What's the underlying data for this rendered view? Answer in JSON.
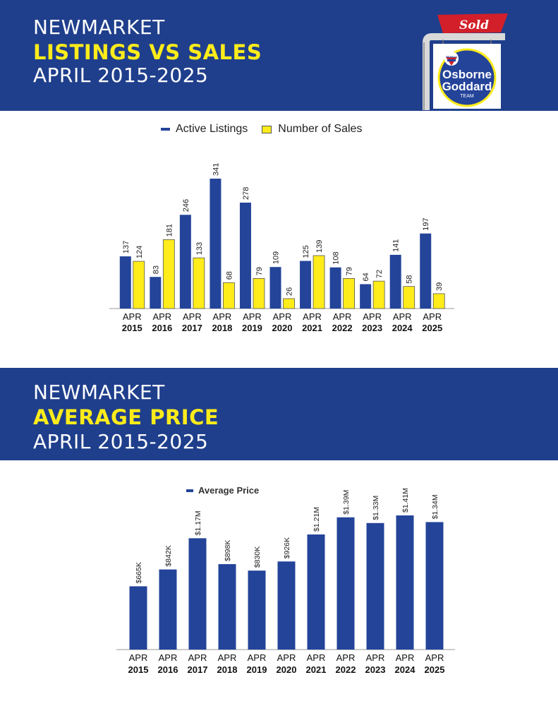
{
  "section1": {
    "title_line1": "NEWMARKET",
    "title_line2": "LISTINGS VS SALES",
    "title_line3": "APRIL 2015-2025"
  },
  "section2": {
    "title_line1": "NEWMARKET",
    "title_line2": "AVERAGE PRICE",
    "title_line3": "APRIL 2015-2025"
  },
  "logo": {
    "sign_text": "Sold",
    "brand_line1": "Osborne",
    "brand_line2": "Goddard",
    "brand_line3": "TEAM",
    "badge_text": "RE/MAX"
  },
  "colors": {
    "banner": "#1f3f8c",
    "highlight": "#ffec1a",
    "active_listings": "#24449a",
    "sales": "#ffec1a",
    "sold_red": "#d21f2a"
  },
  "chart_data": [
    {
      "type": "bar",
      "categories": [
        "APR 2015",
        "APR 2016",
        "APR 2017",
        "APR 2018",
        "APR 2019",
        "APR 2020",
        "APR 2021",
        "APR 2022",
        "APR 2023",
        "APR 2024",
        "APR 2025"
      ],
      "category_lines": [
        [
          "APR",
          "2015"
        ],
        [
          "APR",
          "2016"
        ],
        [
          "APR",
          "2017"
        ],
        [
          "APR",
          "2018"
        ],
        [
          "APR",
          "2019"
        ],
        [
          "APR",
          "2020"
        ],
        [
          "APR",
          "2021"
        ],
        [
          "APR",
          "2022"
        ],
        [
          "APR",
          "2023"
        ],
        [
          "APR",
          "2024"
        ],
        [
          "APR",
          "2025"
        ]
      ],
      "series": [
        {
          "name": "Active Listings",
          "color": "#24449a",
          "values": [
            137,
            83,
            246,
            341,
            278,
            109,
            125,
            108,
            64,
            141,
            197
          ],
          "labels": [
            "137",
            "83",
            "246",
            "341",
            "278",
            "109",
            "125",
            "108",
            "64",
            "141",
            "197"
          ]
        },
        {
          "name": "Number of Sales",
          "color": "#ffec1a",
          "values": [
            124,
            181,
            133,
            68,
            79,
            26,
            139,
            79,
            72,
            58,
            39
          ],
          "labels": [
            "124",
            "181",
            "133",
            "68",
            "79",
            "26",
            "139",
            "79",
            "72",
            "58",
            "39"
          ]
        }
      ],
      "ylim": [
        0,
        341
      ],
      "legend_position": "top-center",
      "grid": false
    },
    {
      "type": "bar",
      "categories": [
        "APR 2015",
        "APR 2016",
        "APR 2017",
        "APR 2018",
        "APR 2019",
        "APR 2020",
        "APR 2021",
        "APR 2022",
        "APR 2023",
        "APR 2024",
        "APR 2025"
      ],
      "category_lines": [
        [
          "APR",
          "2015"
        ],
        [
          "APR",
          "2016"
        ],
        [
          "APR",
          "2017"
        ],
        [
          "APR",
          "2018"
        ],
        [
          "APR",
          "2019"
        ],
        [
          "APR",
          "2020"
        ],
        [
          "APR",
          "2021"
        ],
        [
          "APR",
          "2022"
        ],
        [
          "APR",
          "2023"
        ],
        [
          "APR",
          "2024"
        ],
        [
          "APR",
          "2025"
        ]
      ],
      "series": [
        {
          "name": "Average Price",
          "color": "#24449a",
          "values": [
            665000,
            842000,
            1170000,
            898000,
            830000,
            926000,
            1210000,
            1390000,
            1330000,
            1410000,
            1340000
          ],
          "labels": [
            "$665K",
            "$842K",
            "$1.17M",
            "$898K",
            "$830K",
            "$926K",
            "$1.21M",
            "$1.39M",
            "$1.33M",
            "$1.41M",
            "$1.34M"
          ]
        }
      ],
      "ylim": [
        0,
        1410000
      ],
      "legend_position": "top-center",
      "grid": false
    }
  ]
}
